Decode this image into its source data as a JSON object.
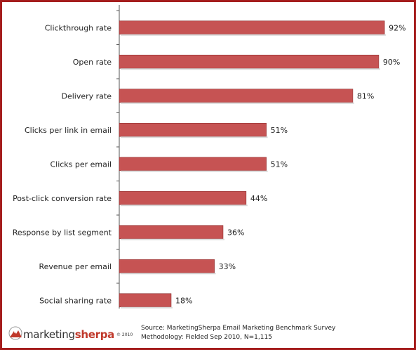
{
  "chart_data": {
    "type": "bar",
    "orientation": "horizontal",
    "categories": [
      "Clickthrough rate",
      "Open rate",
      "Delivery rate",
      "Clicks per link in email",
      "Clicks per email",
      "Post-click conversion rate",
      "Response by list segment",
      "Revenue per email",
      "Social sharing rate"
    ],
    "values": [
      92,
      90,
      81,
      51,
      51,
      44,
      36,
      33,
      18
    ],
    "value_labels": [
      "92%",
      "90%",
      "81%",
      "51%",
      "51%",
      "44%",
      "36%",
      "33%",
      "18%"
    ],
    "xlim": [
      0,
      100
    ],
    "grid": false,
    "legend": "none",
    "bar_color": "#c65353",
    "bar_border_color": "#8e2f2f"
  },
  "footer": {
    "logo_part1": "marketing",
    "logo_part2": "sherpa",
    "logo_copyright": "© 2010",
    "source_line": "Source: MarketingSherpa Email Marketing Benchmark Survey",
    "methodology_line": "Methodology: Fielded Sep 2010, N=1,115"
  },
  "colors": {
    "frame": "#a51d1d",
    "accent": "#c0392b"
  }
}
